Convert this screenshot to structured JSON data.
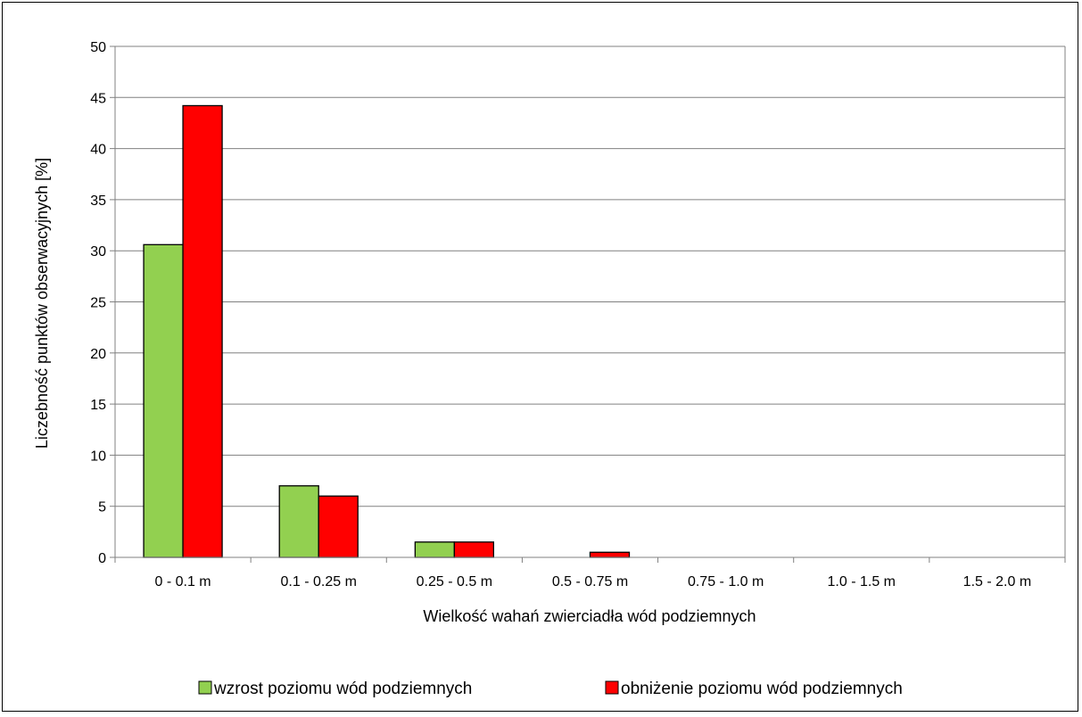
{
  "chart_data": {
    "type": "bar",
    "title": "",
    "xlabel": "Wielkość wahań zwierciadła wód podziemnych",
    "ylabel": "Liczebność punktów obserwacyjnych [%]",
    "ylim": [
      0,
      50
    ],
    "yticks": [
      0,
      5,
      10,
      15,
      20,
      25,
      30,
      35,
      40,
      45,
      50
    ],
    "categories": [
      "0 - 0.1 m",
      "0.1 - 0.25 m",
      "0.25 - 0.5 m",
      "0.5 - 0.75 m",
      "0.75 - 1.0 m",
      "1.0 - 1.5 m",
      "1.5 - 2.0 m"
    ],
    "series": [
      {
        "name": "wzrost poziomu wód podziemnych",
        "color": "#92d050",
        "values": [
          30.6,
          7.0,
          1.5,
          0,
          0,
          0,
          0
        ]
      },
      {
        "name": "obniżenie poziomu wód podziemnych",
        "color": "#ff0000",
        "values": [
          44.2,
          6.0,
          1.5,
          0.5,
          0,
          0,
          0
        ]
      }
    ],
    "grid": true,
    "legend": "bottom"
  }
}
